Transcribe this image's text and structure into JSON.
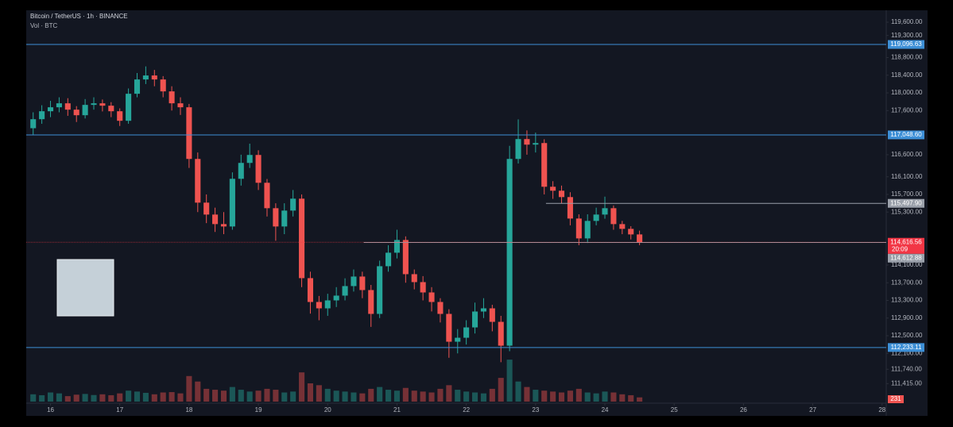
{
  "chart_data": {
    "type": "candlestick",
    "title": "Bitcoin / TetherUS · 1h · BINANCE",
    "subtitle": "Vol · BTC",
    "up_color": "#26a69a",
    "down_color": "#ef5350",
    "grid": false,
    "x": [
      15.75,
      15.875,
      16,
      16.125,
      16.25,
      16.375,
      16.5,
      16.625,
      16.75,
      16.875,
      17,
      17.125,
      17.25,
      17.375,
      17.5,
      17.625,
      17.75,
      17.875,
      18,
      18.125,
      18.25,
      18.375,
      18.5,
      18.625,
      18.75,
      18.875,
      19,
      19.125,
      19.25,
      19.375,
      19.5,
      19.625,
      19.75,
      19.875,
      20,
      20.125,
      20.25,
      20.375,
      20.5,
      20.625,
      20.75,
      20.875,
      21,
      21.125,
      21.25,
      21.375,
      21.5,
      21.625,
      21.75,
      21.875,
      22,
      22.125,
      22.25,
      22.375,
      22.5,
      22.625,
      22.75,
      22.875,
      23,
      23.125,
      23.25,
      23.375,
      23.5,
      23.625,
      23.75,
      23.875,
      24,
      24.125,
      24.25,
      24.375,
      24.5
    ],
    "open": [
      117200,
      117404,
      117584,
      117674,
      117764,
      117620,
      117494,
      117728,
      117764,
      117710,
      117584,
      117368,
      117980,
      118304,
      118394,
      118304,
      118034,
      117764,
      117674,
      116504,
      115514,
      115244,
      115028,
      114974,
      116054,
      116414,
      116594,
      115964,
      115388,
      114974,
      115334,
      115604,
      113804,
      113264,
      113120,
      113300,
      113408,
      113624,
      113840,
      113534,
      112994,
      114074,
      114380,
      114668,
      113894,
      113714,
      113480,
      113264,
      112994,
      112364,
      112454,
      112688,
      113048,
      113120,
      112814,
      112274,
      116504,
      116954,
      116828,
      116864,
      115874,
      115784,
      115640,
      115154,
      114704,
      115100,
      115244,
      115388,
      115028,
      114920,
      114794
    ],
    "high": [
      117560,
      117720,
      117820,
      117900,
      117880,
      117700,
      117860,
      117900,
      117850,
      117790,
      117650,
      118100,
      118450,
      118600,
      118520,
      118380,
      118150,
      117900,
      117750,
      116650,
      115700,
      115400,
      115300,
      116200,
      116600,
      116850,
      116700,
      116050,
      115500,
      115500,
      115800,
      115700,
      113950,
      113400,
      113450,
      113600,
      113800,
      114000,
      113950,
      113650,
      114200,
      114550,
      114900,
      114750,
      114000,
      113850,
      113600,
      113350,
      113100,
      112650,
      112850,
      113250,
      113350,
      113200,
      112950,
      116800,
      117400,
      117150,
      117100,
      116950,
      116000,
      115900,
      115750,
      115250,
      115250,
      115400,
      115650,
      115450,
      115100,
      114980,
      114880
    ],
    "low": [
      117050,
      117300,
      117450,
      117560,
      117480,
      117340,
      117420,
      117620,
      117580,
      117450,
      117250,
      117300,
      117900,
      118200,
      118150,
      117900,
      117600,
      117500,
      116300,
      115300,
      115050,
      114850,
      114800,
      114900,
      115900,
      116300,
      115800,
      115200,
      114650,
      114800,
      115200,
      113600,
      113000,
      112850,
      112950,
      113150,
      113300,
      113500,
      113350,
      112700,
      112900,
      113950,
      114250,
      113700,
      113550,
      113300,
      113050,
      112800,
      112000,
      112100,
      112300,
      112550,
      112900,
      112600,
      111900,
      112150,
      116400,
      116600,
      116650,
      115700,
      115600,
      115500,
      115000,
      114550,
      114600,
      115000,
      115150,
      114900,
      114800,
      114680,
      114550
    ],
    "close": [
      117404,
      117584,
      117674,
      117764,
      117620,
      117494,
      117728,
      117764,
      117710,
      117584,
      117368,
      117980,
      118304,
      118394,
      118304,
      118034,
      117764,
      117674,
      116504,
      115514,
      115244,
      115028,
      114974,
      116054,
      116414,
      116594,
      115964,
      115388,
      114974,
      115334,
      115604,
      113804,
      113264,
      113120,
      113300,
      113408,
      113624,
      113840,
      113534,
      112994,
      114074,
      114380,
      114668,
      113894,
      113714,
      113480,
      113264,
      112994,
      112364,
      112454,
      112688,
      113048,
      113120,
      112814,
      112274,
      116504,
      116954,
      116828,
      116864,
      115874,
      115784,
      115640,
      115154,
      114704,
      115100,
      115244,
      115388,
      115028,
      114920,
      114794,
      114616.56
    ],
    "volume": [
      400,
      350,
      500,
      450,
      300,
      380,
      420,
      360,
      400,
      350,
      450,
      600,
      550,
      480,
      400,
      500,
      520,
      450,
      1400,
      1100,
      700,
      650,
      600,
      800,
      650,
      550,
      600,
      700,
      650,
      500,
      550,
      1600,
      1000,
      900,
      700,
      600,
      550,
      500,
      450,
      700,
      800,
      650,
      600,
      750,
      600,
      550,
      500,
      700,
      900,
      650,
      550,
      500,
      450,
      700,
      1300,
      2300,
      1100,
      800,
      650,
      600,
      550,
      500,
      600,
      700,
      500,
      450,
      550,
      500,
      400,
      350,
      231
    ],
    "xlim": [
      15.65,
      28.06
    ],
    "xticks": [
      16,
      17,
      18,
      19,
      20,
      21,
      22,
      23,
      24,
      25,
      26,
      27,
      28
    ],
    "ylim": [
      110720,
      119852
    ],
    "y2lim": [
      0,
      4000
    ],
    "yticks": [
      {
        "value": 119600,
        "label": "119,600.00"
      },
      {
        "value": 119300,
        "label": "119,300.00"
      },
      {
        "value": 118800,
        "label": "118,800.00"
      },
      {
        "value": 118400,
        "label": "118,400.00"
      },
      {
        "value": 118000,
        "label": "118,000.00"
      },
      {
        "value": 117600,
        "label": "117,600.00"
      },
      {
        "value": 116600,
        "label": "116,600.00"
      },
      {
        "value": 116100,
        "label": "116,100.00"
      },
      {
        "value": 115700,
        "label": "115,700.00"
      },
      {
        "value": 115300,
        "label": "115,300.00"
      },
      {
        "value": 114100,
        "label": "114,100.00"
      },
      {
        "value": 113700,
        "label": "113,700.00"
      },
      {
        "value": 113300,
        "label": "113,300.00"
      },
      {
        "value": 112900,
        "label": "112,900.00"
      },
      {
        "value": 112500,
        "label": "112,500.00"
      },
      {
        "value": 112100,
        "label": "112,100.00"
      },
      {
        "value": 111740,
        "label": "111,740.00"
      },
      {
        "value": 111415,
        "label": "111,415.00"
      }
    ],
    "levels": [
      {
        "value": 119096.63,
        "label": "119,096.63",
        "color": "#3d8fd6"
      },
      {
        "value": 117048.6,
        "label": "117,048.60",
        "color": "#3d8fd6"
      },
      {
        "value": 115497.9,
        "label": "115,497.90",
        "color": "#9aa0aa",
        "from": 23.15
      },
      {
        "value": 114612.88,
        "label": "114,612.88",
        "color": "#9aa0aa",
        "from": 20.52
      },
      {
        "value": 112233.11,
        "label": "112,233.11",
        "color": "#3d8fd6"
      }
    ],
    "last_price": {
      "value": 114616.56,
      "label": "114,616.56",
      "countdown": "20:09",
      "color": "#f23645"
    }
  }
}
